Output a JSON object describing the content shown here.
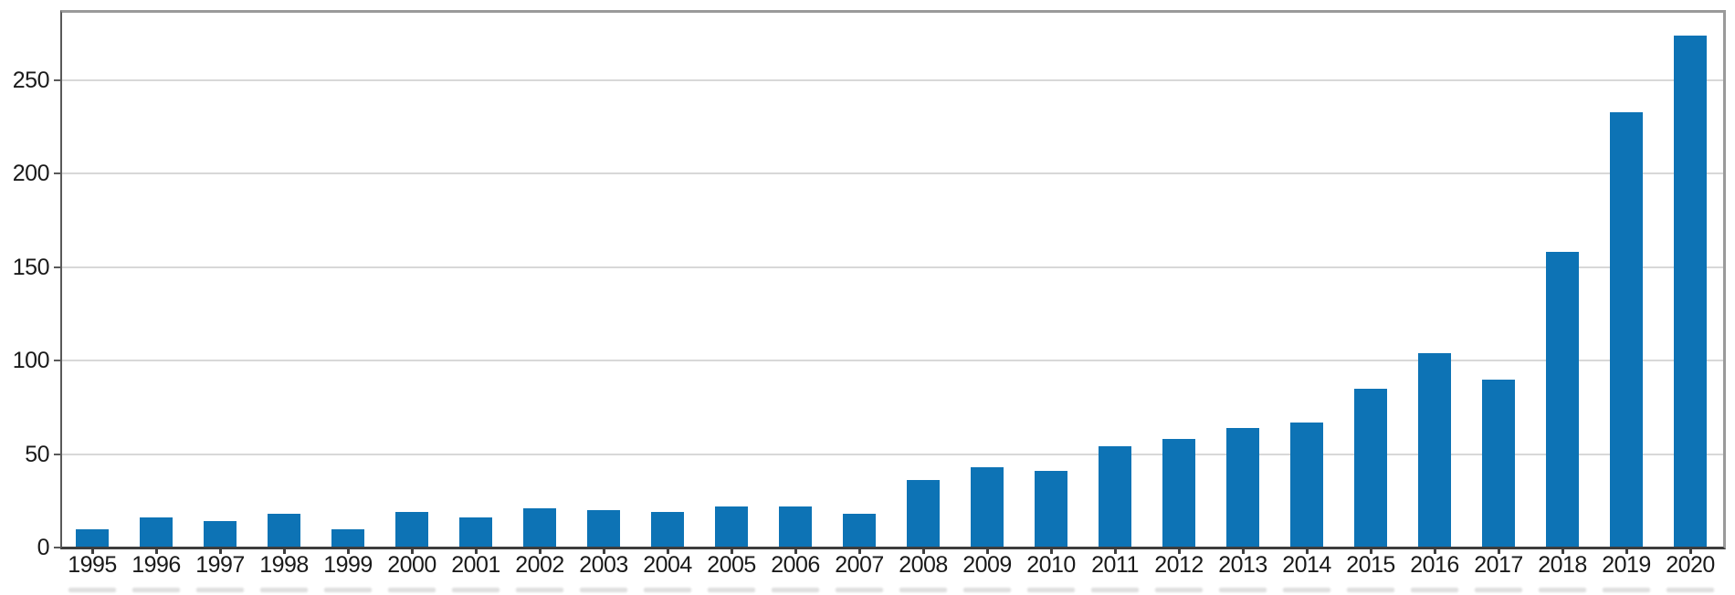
{
  "chart_data": {
    "type": "bar",
    "title": "",
    "xlabel": "",
    "ylabel": "",
    "categories": [
      "1995",
      "1996",
      "1997",
      "1998",
      "1999",
      "2000",
      "2001",
      "2002",
      "2003",
      "2004",
      "2005",
      "2006",
      "2007",
      "2008",
      "2009",
      "2010",
      "2011",
      "2012",
      "2013",
      "2014",
      "2015",
      "2016",
      "2017",
      "2018",
      "2019",
      "2020"
    ],
    "values": [
      10,
      16,
      14,
      18,
      10,
      19,
      16,
      21,
      20,
      19,
      22,
      22,
      18,
      36,
      43,
      41,
      54,
      58,
      64,
      67,
      85,
      104,
      90,
      158,
      233,
      274
    ],
    "yticks": [
      0,
      50,
      100,
      150,
      200,
      250
    ],
    "ylim": [
      0,
      287
    ],
    "grid": true,
    "legend": "none",
    "colors": {
      "bar": "#0d73b5",
      "grid_line": "#d8d8d8",
      "frame": "#9a9a9a",
      "axis_left": "#595959",
      "axis_bottom": "#3d3d3d",
      "tick_text": "#1a1a1a"
    }
  }
}
